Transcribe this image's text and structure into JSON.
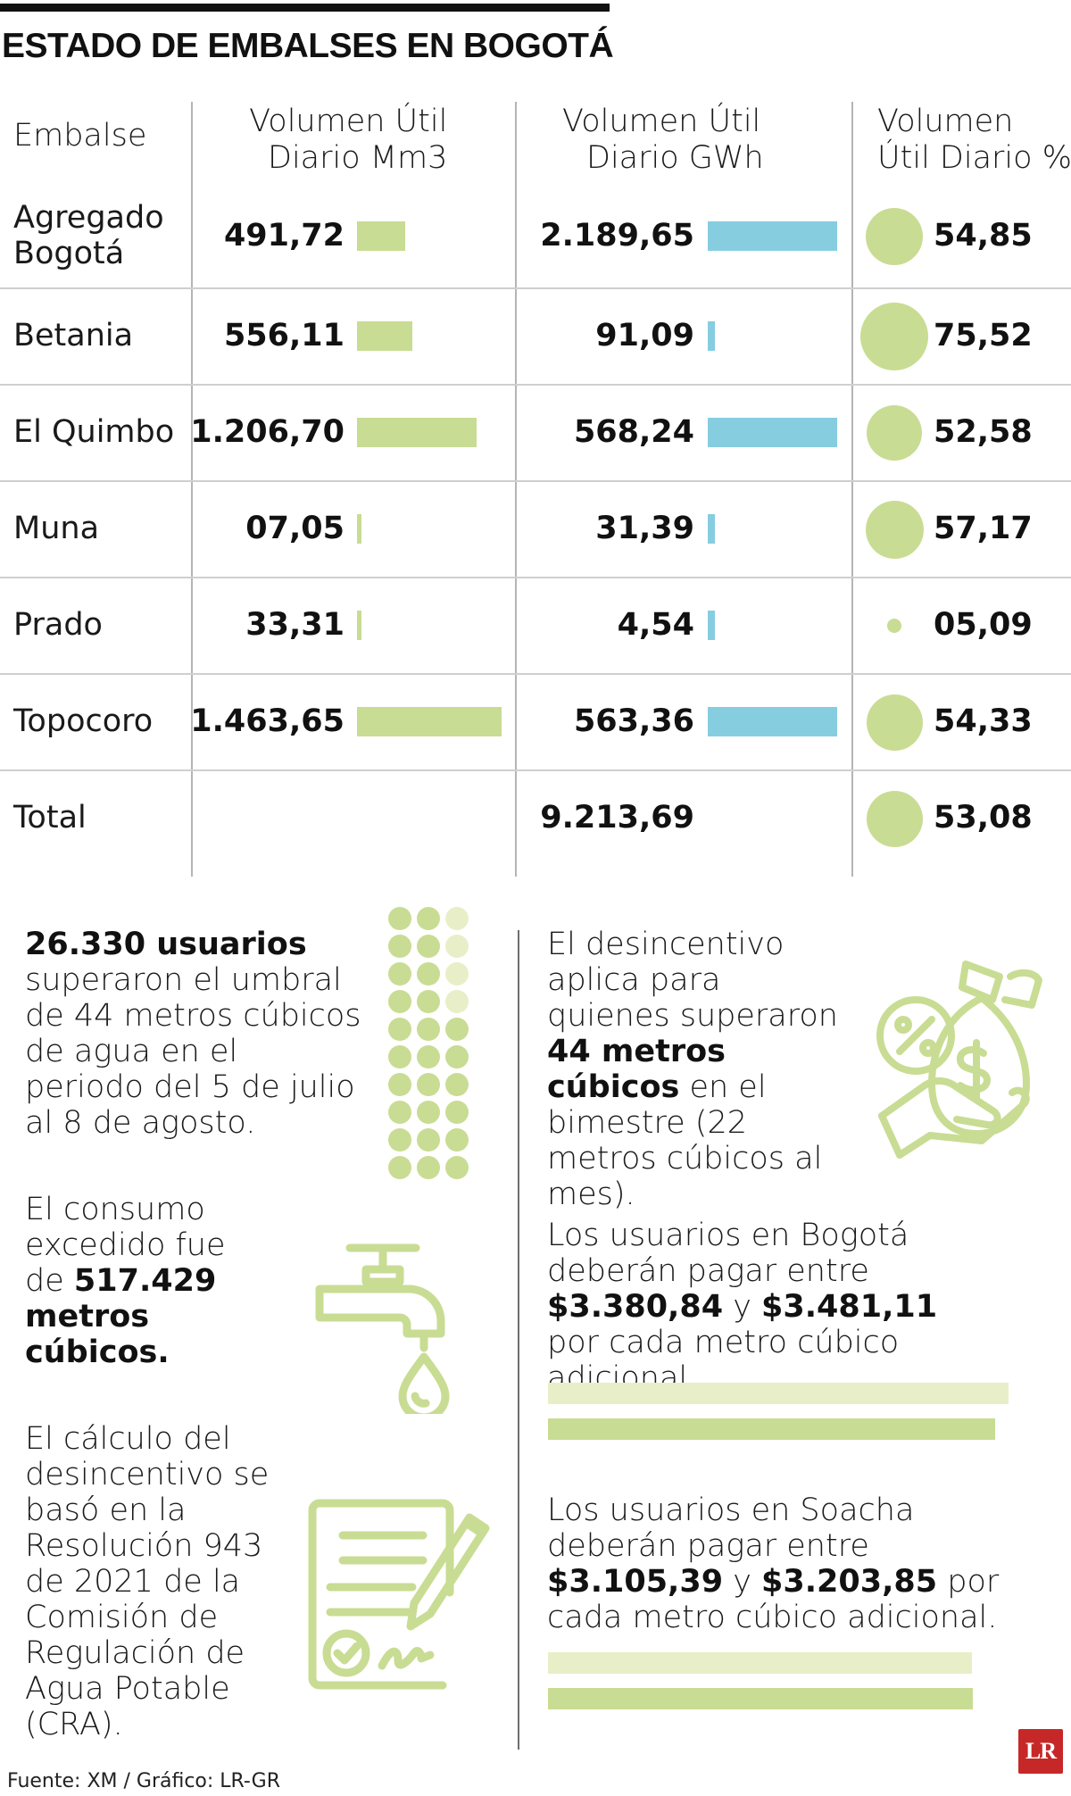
{
  "title": "ESTADO DE EMBALSES EN BOGOTÁ",
  "table": {
    "headers": {
      "embalse": "Embalse",
      "mm3": [
        "Volumen Útil",
        "Diario Mm3"
      ],
      "gwh": [
        "Volumen Útil",
        "Diario GWh"
      ],
      "pct": [
        "Volumen",
        "Útil Diario %"
      ]
    }
  },
  "chart_data": {
    "type": "table",
    "columns": [
      "Embalse",
      "Volumen Útil Diario Mm3",
      "Volumen Útil Diario GWh",
      "Volumen Útil Diario %"
    ],
    "rows": [
      {
        "name": [
          "Agregado",
          "Bogotá"
        ],
        "mm3": "491,72",
        "mm3_value": 491.72,
        "gwh": "2.189,65",
        "gwh_value": 2189.65,
        "pct": "54,85",
        "pct_value": 54.85
      },
      {
        "name": [
          "Betania"
        ],
        "mm3": "556,11",
        "mm3_value": 556.11,
        "gwh": "91,09",
        "gwh_value": 91.09,
        "pct": "75,52",
        "pct_value": 75.52
      },
      {
        "name": [
          "El Quimbo"
        ],
        "mm3": "1.206,70",
        "mm3_value": 1206.7,
        "gwh": "568,24",
        "gwh_value": 568.24,
        "pct": "52,58",
        "pct_value": 52.58
      },
      {
        "name": [
          "Muna"
        ],
        "mm3": "07,05",
        "mm3_value": 7.05,
        "gwh": "31,39",
        "gwh_value": 31.39,
        "pct": "57,17",
        "pct_value": 57.17
      },
      {
        "name": [
          "Prado"
        ],
        "mm3": "33,31",
        "mm3_value": 33.31,
        "gwh": "4,54",
        "gwh_value": 4.54,
        "pct": "05,09",
        "pct_value": 5.09
      },
      {
        "name": [
          "Topocoro"
        ],
        "mm3": "1.463,65",
        "mm3_value": 1463.65,
        "gwh": "563,36",
        "gwh_value": 563.36,
        "pct": "54,33",
        "pct_value": 54.33
      },
      {
        "name": [
          "Total"
        ],
        "mm3": "",
        "mm3_value": null,
        "gwh": "9.213,69",
        "gwh_value": 9213.69,
        "pct": "53,08",
        "pct_value": 53.08
      }
    ],
    "colors": {
      "mm3_bar": "#c9dc93",
      "gwh_bar": "#86cde0",
      "pct_circle": "#c9dc93"
    }
  },
  "notes": {
    "usuarios": {
      "bold": "26.330 usuarios",
      "text": "superaron el umbral de 44 metros cúbicos de agua en el periodo del 5 de julio al 8 de agosto."
    },
    "consumo": {
      "text1": "El consumo excedido fue de ",
      "bold": "517.429 metros cúbicos."
    },
    "calculo": {
      "text": "El cálculo del desincentivo se basó en la Resolución 943 de 2021 de la Comisión de Regulación de Agua Potable (CRA)."
    },
    "desincentivo": {
      "text1": "El desincentivo aplica para quienes superaron ",
      "bold": "44 metros cúbicos",
      "text2": " en el bimestre (22 metros cúbicos al mes)."
    },
    "bogota": {
      "text1": "Los usuarios en Bogotá deberán pagar entre ",
      "bold1": "$3.380,84",
      "text2": " y ",
      "bold2": "$3.481,11",
      "text3": " por cada metro cúbico adicional."
    },
    "soacha": {
      "text1": "Los usuarios en Soacha deberán pagar entre ",
      "bold1": "$3.105,39",
      "text2": " y ",
      "bold2": "$3.203,85",
      "text3": " por cada metro cúbico adicional."
    }
  },
  "price_bars": {
    "bogota": [
      {
        "label": "$3.380,84",
        "value": 3380.84,
        "color": "#e8efc8"
      },
      {
        "label": "$3.481,11",
        "value": 3481.11,
        "color": "#c9dc93"
      }
    ],
    "soacha": [
      {
        "label": "$3.105,39",
        "value": 3105.39,
        "color": "#e8efc8"
      },
      {
        "label": "$3.203,85",
        "value": 3203.85,
        "color": "#c9dc93"
      }
    ]
  },
  "icons": {
    "dots": "dot-matrix-icon",
    "tap": "water-tap-icon",
    "money": "money-hand-icon",
    "document": "document-sign-icon"
  },
  "footer": "Fuente: XM / Gráfico: LR-GR",
  "logo": "LR",
  "colors": {
    "green": "#c9dc93",
    "light_green": "#e8efc8",
    "blue": "#86cde0",
    "logo_red": "#c62828"
  }
}
